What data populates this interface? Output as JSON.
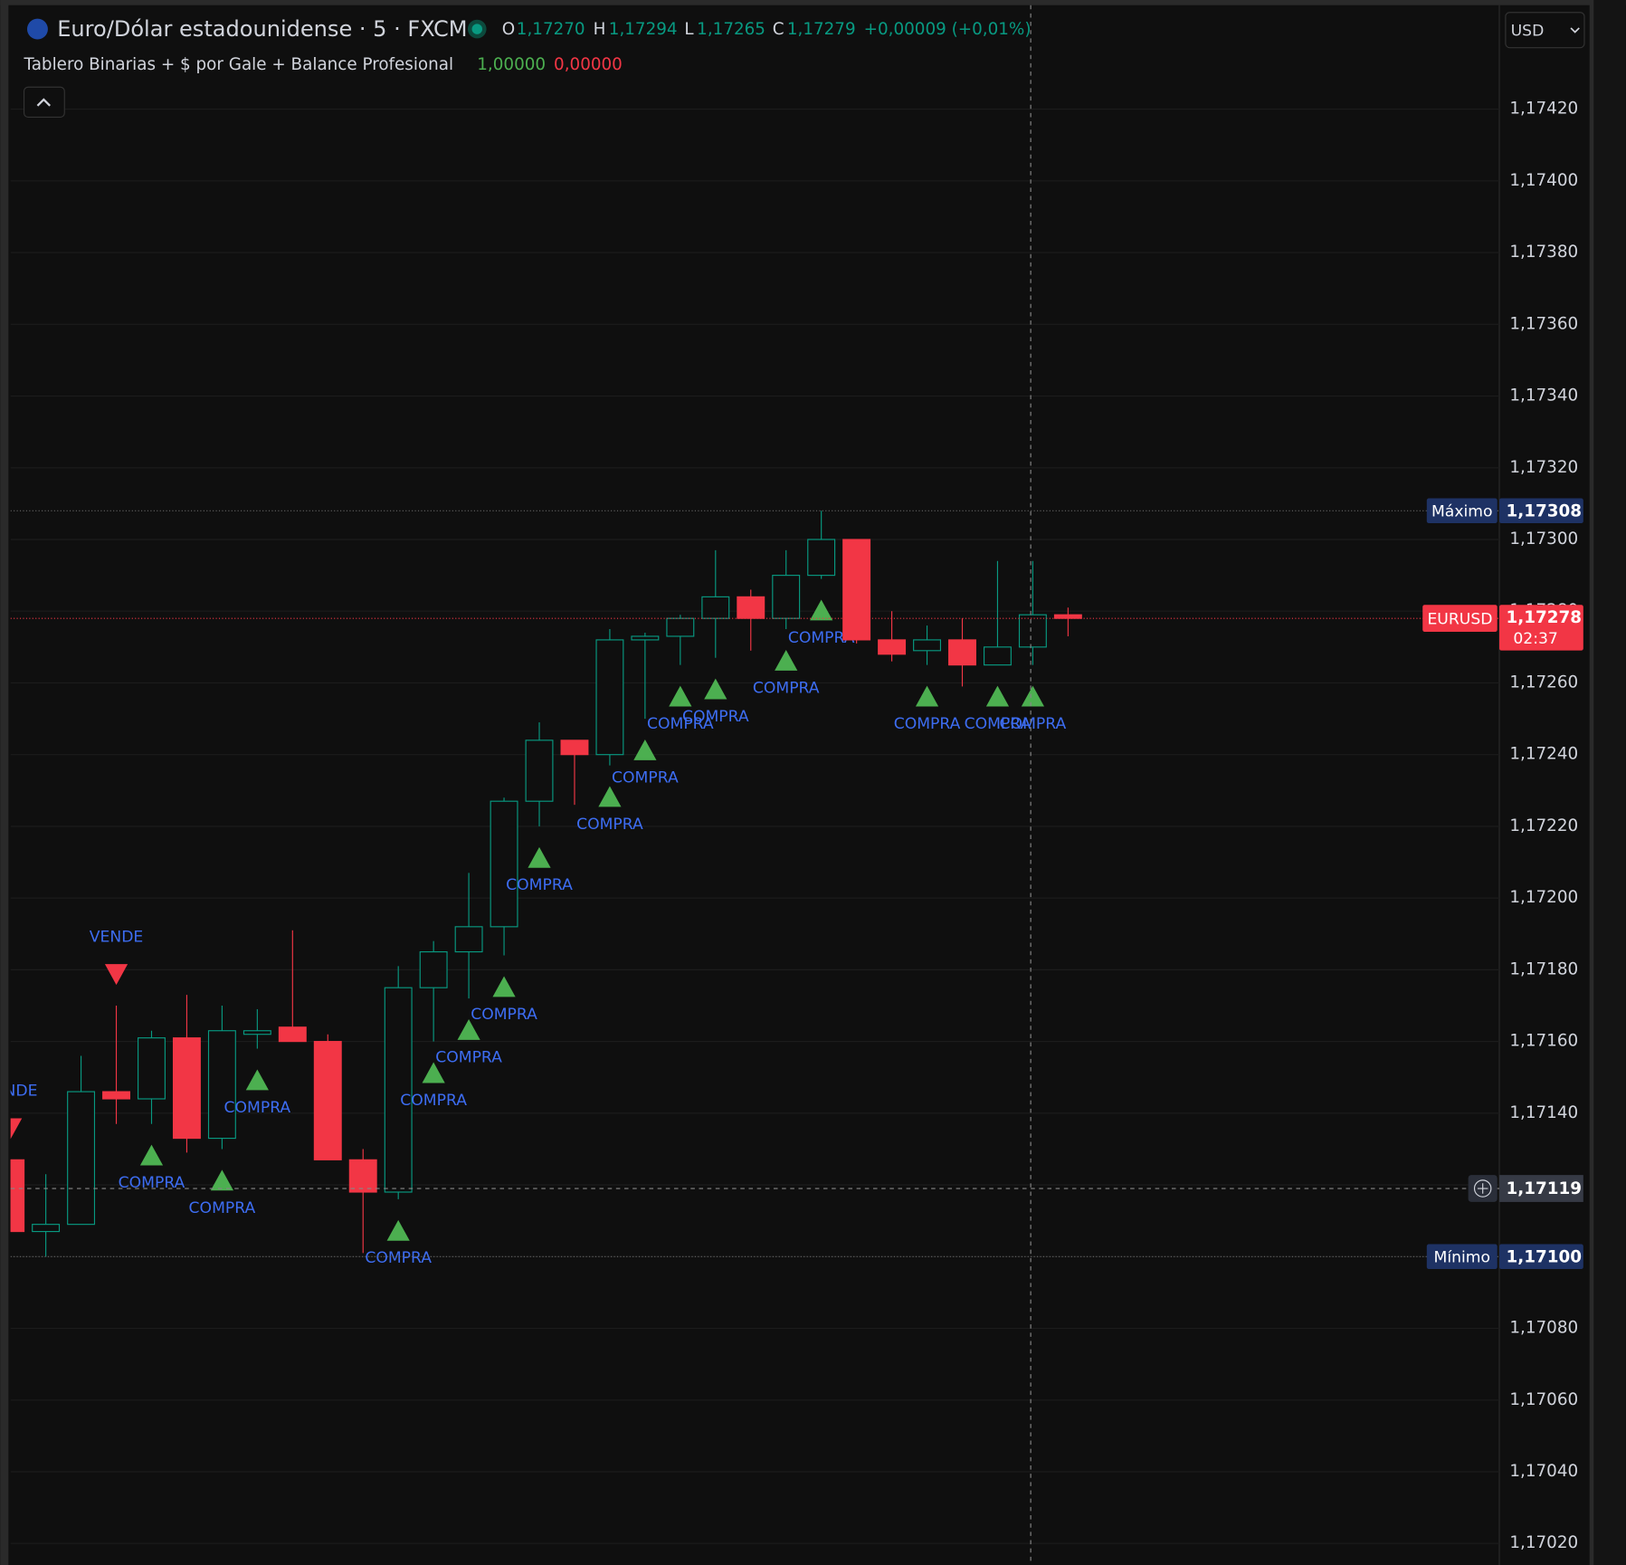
{
  "chart_data": {
    "type": "candlestick",
    "title": "Euro/Dólar estadounidense · 5 · FXCM",
    "header": {
      "ohlc_letters": [
        "O",
        "H",
        "L",
        "C"
      ],
      "ohlc_values": [
        "1,17270",
        "1,17294",
        "1,17265",
        "1,17279"
      ],
      "change": "+0,00009 (+0,01%)",
      "indicator": "Tablero Binarias + $ por Gale + Balance Profesional",
      "indicator_values": [
        "1,00000",
        "0,00000"
      ],
      "currency": "USD"
    },
    "up_color": "#089981",
    "down_color": "#f23645",
    "signal_colors": {
      "COMPRA": "#4caf50",
      "VENDE": "#f23645"
    },
    "signal_text_color": "#3d6df2",
    "open": [
      1.17127,
      1.17107,
      1.17109,
      1.17146,
      1.17144,
      1.17161,
      1.17133,
      1.17162,
      1.17164,
      1.1716,
      1.17127,
      1.17118,
      1.17175,
      1.17185,
      1.17192,
      1.17227,
      1.17244,
      1.1724,
      1.17272,
      1.17273,
      1.17278,
      1.17284,
      1.17278,
      1.1729,
      1.173,
      1.17272,
      1.17269,
      1.17272,
      1.17265,
      1.1727,
      1.17279
    ],
    "high": [
      1.17127,
      1.17123,
      1.17156,
      1.1717,
      1.17163,
      1.17173,
      1.1717,
      1.17169,
      1.17191,
      1.17162,
      1.1713,
      1.17181,
      1.17188,
      1.17207,
      1.17228,
      1.17249,
      1.17244,
      1.17275,
      1.17274,
      1.17279,
      1.17297,
      1.17286,
      1.17297,
      1.17308,
      1.173,
      1.1728,
      1.17276,
      1.17278,
      1.17294,
      1.17294,
      1.17281
    ],
    "low": [
      1.17107,
      1.171,
      1.17109,
      1.17137,
      1.17137,
      1.17129,
      1.1713,
      1.17158,
      1.1716,
      1.17127,
      1.17101,
      1.17116,
      1.1716,
      1.17172,
      1.17184,
      1.1722,
      1.17226,
      1.17237,
      1.1725,
      1.17265,
      1.17267,
      1.17269,
      1.17275,
      1.17289,
      1.17271,
      1.17266,
      1.17265,
      1.17259,
      1.17265,
      1.17265,
      1.17273
    ],
    "close": [
      1.17107,
      1.17109,
      1.17146,
      1.17144,
      1.17161,
      1.17133,
      1.17163,
      1.17163,
      1.1716,
      1.17127,
      1.17118,
      1.17175,
      1.17185,
      1.17192,
      1.17227,
      1.17244,
      1.1724,
      1.17272,
      1.17273,
      1.17278,
      1.17284,
      1.17278,
      1.1729,
      1.173,
      1.17272,
      1.17268,
      1.17272,
      1.17265,
      1.1727,
      1.17279,
      1.17278
    ],
    "signals": [
      "VENDE",
      null,
      null,
      "VENDE",
      "COMPRA",
      null,
      "COMPRA",
      "COMPRA",
      null,
      null,
      null,
      "COMPRA",
      "COMPRA",
      "COMPRA",
      "COMPRA",
      "COMPRA",
      null,
      "COMPRA",
      "COMPRA",
      "COMPRA",
      "COMPRA",
      null,
      "COMPRA",
      "COMPRA",
      null,
      null,
      "COMPRA",
      null,
      "COMPRA",
      "COMPRA",
      null
    ],
    "ylim": [
      1.17014,
      1.17449
    ],
    "yticks": [
      {
        "value": 1.1702,
        "label": "1,17020"
      },
      {
        "value": 1.1704,
        "label": "1,17040"
      },
      {
        "value": 1.1706,
        "label": "1,17060"
      },
      {
        "value": 1.1708,
        "label": "1,17080"
      },
      {
        "value": 1.171,
        "label": "1,17100"
      },
      {
        "value": 1.1712,
        "label": "1,17120"
      },
      {
        "value": 1.1714,
        "label": "1,17140"
      },
      {
        "value": 1.1716,
        "label": "1,17160"
      },
      {
        "value": 1.1718,
        "label": "1,17180"
      },
      {
        "value": 1.172,
        "label": "1,17200"
      },
      {
        "value": 1.1722,
        "label": "1,17220"
      },
      {
        "value": 1.1724,
        "label": "1,17240"
      },
      {
        "value": 1.1726,
        "label": "1,17260"
      },
      {
        "value": 1.1728,
        "label": "1,17280"
      },
      {
        "value": 1.173,
        "label": "1,17300"
      },
      {
        "value": 1.1732,
        "label": "1,17320"
      },
      {
        "value": 1.1734,
        "label": "1,17340"
      },
      {
        "value": 1.1736,
        "label": "1,17360"
      },
      {
        "value": 1.1738,
        "label": "1,17380"
      },
      {
        "value": 1.174,
        "label": "1,17400"
      },
      {
        "value": 1.1742,
        "label": "1,17420"
      }
    ],
    "grid": true,
    "levels": [
      {
        "name": "Máximo",
        "value": 1.17308,
        "label": "1,17308",
        "color": "#1e3264"
      },
      {
        "name": "Mínimo",
        "value": 1.171,
        "label": "1,17100",
        "color": "#1e3264"
      }
    ],
    "crosshair": {
      "value": 1.17119,
      "label": "1,17119"
    },
    "last_price": {
      "name": "EURUSD",
      "value": 1.17278,
      "label": "1,17278",
      "countdown": "02:37",
      "color": "#f23645"
    }
  }
}
